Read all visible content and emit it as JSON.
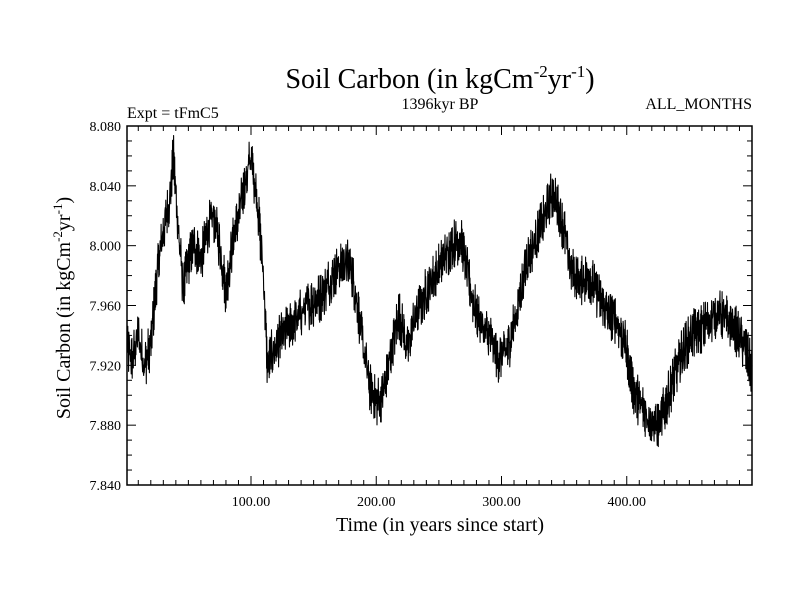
{
  "chart_data": {
    "type": "line",
    "title": {
      "main": "Soil Carbon (in kgCm",
      "sup1": "-2",
      "mid": "yr",
      "sup2": "-1",
      "end": ")"
    },
    "subtitle_left": "Expt = tFmC5",
    "subtitle_center": "1396kyr BP",
    "subtitle_right": "ALL_MONTHS",
    "xlabel": "Time (in years since start)",
    "ylabel": {
      "main": "Soil Carbon (in kgCm",
      "sup1": "-2",
      "mid": "yr",
      "sup2": "-1",
      "end": ")"
    },
    "xlim": [
      1,
      500
    ],
    "ylim": [
      7.84,
      8.08
    ],
    "x_ticks": [
      100,
      200,
      300,
      400
    ],
    "x_tick_labels": [
      "100.00",
      "200.00",
      "300.00",
      "400.00"
    ],
    "y_ticks": [
      7.84,
      7.88,
      7.92,
      7.96,
      8.0,
      8.04,
      8.08
    ],
    "y_tick_labels": [
      "7.840",
      "7.880",
      "7.920",
      "7.960",
      "8.000",
      "8.040",
      "8.080"
    ],
    "series": [
      {
        "name": "Soil Carbon",
        "color": "#000000",
        "x": [
          1,
          5,
          10,
          15,
          20,
          25,
          30,
          35,
          38,
          42,
          46,
          50,
          55,
          60,
          65,
          70,
          75,
          80,
          85,
          90,
          95,
          100,
          105,
          110,
          113,
          118,
          125,
          135,
          145,
          155,
          165,
          175,
          180,
          185,
          190,
          195,
          200,
          205,
          208,
          212,
          218,
          225,
          230,
          240,
          250,
          260,
          267,
          272,
          278,
          285,
          290,
          297,
          305,
          312,
          320,
          328,
          335,
          340,
          345,
          350,
          355,
          362,
          370,
          378,
          385,
          392,
          400,
          405,
          410,
          418,
          425,
          430,
          437,
          445,
          452,
          460,
          467,
          473,
          480,
          486,
          492,
          497,
          500
        ],
        "values": [
          7.93,
          7.925,
          7.94,
          7.92,
          7.935,
          7.98,
          8.01,
          8.03,
          8.06,
          8.01,
          7.97,
          7.99,
          8.0,
          7.99,
          8.01,
          8.02,
          8.0,
          7.97,
          8.0,
          8.02,
          8.04,
          8.06,
          8.03,
          7.98,
          7.92,
          7.93,
          7.94,
          7.95,
          7.96,
          7.965,
          7.98,
          7.99,
          7.985,
          7.96,
          7.93,
          7.905,
          7.895,
          7.9,
          7.91,
          7.93,
          7.955,
          7.93,
          7.95,
          7.97,
          7.985,
          8.0,
          8.005,
          7.985,
          7.96,
          7.945,
          7.94,
          7.925,
          7.93,
          7.955,
          7.99,
          8.005,
          8.02,
          8.035,
          8.025,
          8.01,
          7.985,
          7.975,
          7.98,
          7.965,
          7.955,
          7.95,
          7.93,
          7.905,
          7.895,
          7.885,
          7.88,
          7.89,
          7.91,
          7.93,
          7.94,
          7.945,
          7.95,
          7.955,
          7.95,
          7.945,
          7.935,
          7.925,
          7.915
        ]
      }
    ]
  }
}
